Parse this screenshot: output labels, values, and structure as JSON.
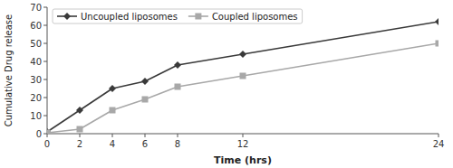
{
  "chart_data": {
    "type": "line",
    "x": [
      0,
      2,
      4,
      6,
      8,
      12,
      24
    ],
    "series": [
      {
        "name": "Uncoupled liposomes",
        "color": "#3a3a3a",
        "marker": "diamond",
        "values": [
          1,
          13,
          25,
          29,
          38,
          44,
          62
        ]
      },
      {
        "name": "Coupled liposomes",
        "color": "#a8a8a8",
        "marker": "square",
        "values": [
          0.5,
          2.5,
          13,
          19,
          26,
          32,
          50
        ]
      }
    ],
    "xlabel": "Time (hrs)",
    "ylabel": "Cumulative Drug release",
    "xlim": [
      0,
      24
    ],
    "ylim": [
      0,
      70
    ],
    "xticks": [
      0,
      2,
      4,
      6,
      8,
      12,
      24
    ],
    "yticks": [
      0,
      10,
      20,
      30,
      40,
      50,
      60,
      70
    ],
    "grid": false,
    "legend": "upper left"
  }
}
